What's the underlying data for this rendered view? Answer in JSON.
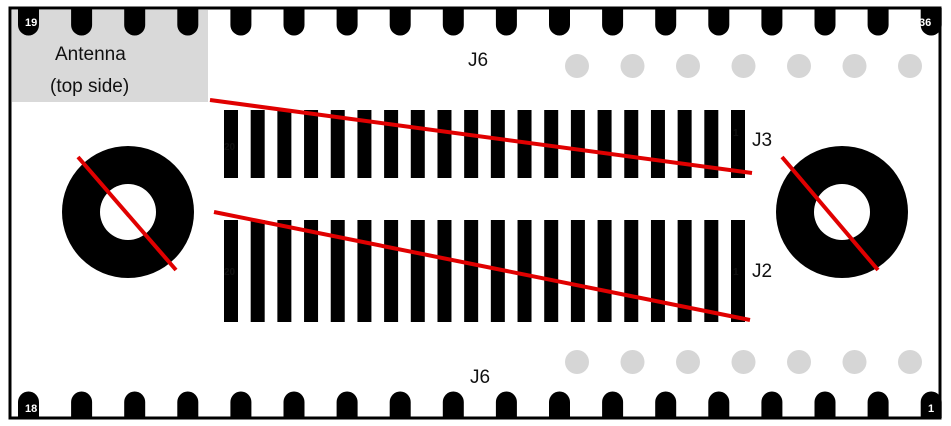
{
  "colors": {
    "outline": "#000000",
    "pin": "#000000",
    "antenna_box": "#d9d9d9",
    "ghost_pin": "#d6d6d6",
    "cross_line": "#e00000"
  },
  "antenna": {
    "line1": "Antenna",
    "line2": "(top side)"
  },
  "j6_top": {
    "label": "J6",
    "left_pin": "19",
    "right_pin": "36",
    "pin_count": 18
  },
  "j6_bottom": {
    "label": "J6",
    "left_pin": "18",
    "right_pin": "1",
    "pin_count": 18
  },
  "j3": {
    "label": "J3",
    "first_pin": "20",
    "last_pin": "1",
    "pad_count": 20
  },
  "j2": {
    "label": "J2",
    "first_pin": "20",
    "last_pin": "1",
    "pad_count": 20
  },
  "ghost_pins": {
    "top_count": 7,
    "bottom_count": 7
  },
  "mounting_holes": [
    {
      "name": "left",
      "crossed": true
    },
    {
      "name": "right",
      "crossed": true
    }
  ]
}
